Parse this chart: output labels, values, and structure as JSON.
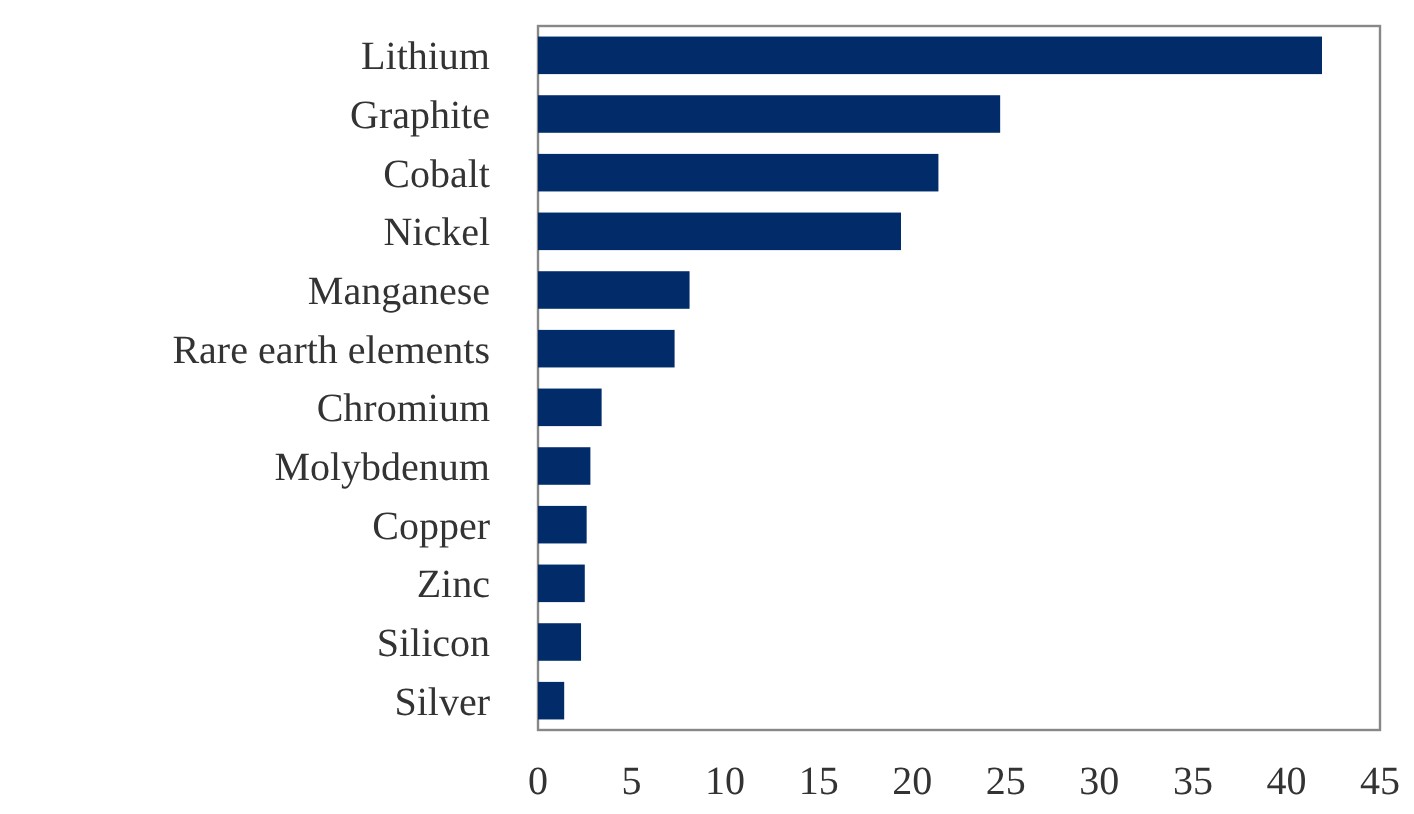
{
  "chart_data": {
    "type": "bar",
    "orientation": "horizontal",
    "categories": [
      "Lithium",
      "Graphite",
      "Cobalt",
      "Nickel",
      "Manganese",
      "Rare earth elements",
      "Chromium",
      "Molybdenum",
      "Copper",
      "Zinc",
      "Silicon",
      "Silver"
    ],
    "values": [
      41.9,
      24.7,
      21.4,
      19.4,
      8.1,
      7.3,
      3.4,
      2.8,
      2.6,
      2.5,
      2.3,
      1.4
    ],
    "color": "#022b69",
    "xlim": [
      0,
      45
    ],
    "xticks": [
      0,
      5,
      10,
      15,
      20,
      25,
      30,
      35,
      40,
      45
    ],
    "grid": false
  }
}
